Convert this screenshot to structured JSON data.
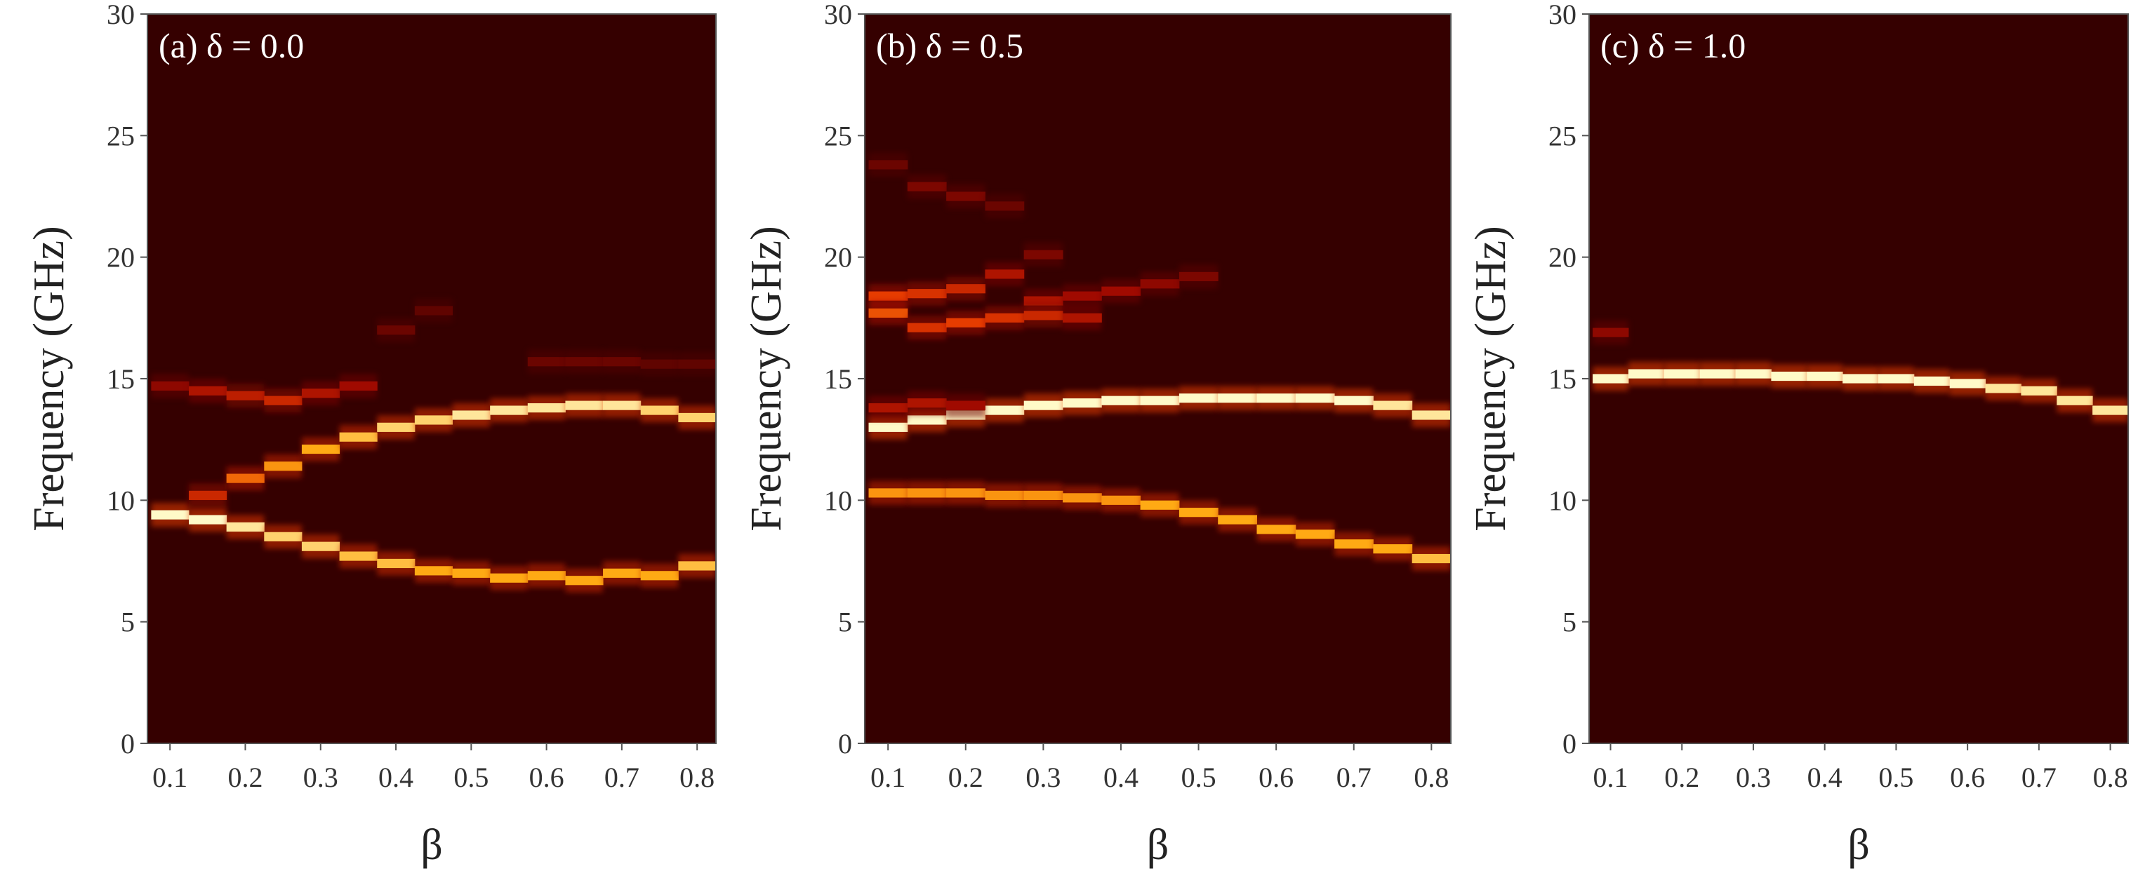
{
  "chart_data": [
    {
      "type": "heatmap",
      "title": "(a) δ = 0.0",
      "xlabel": "β",
      "ylabel": "Frequency (GHz)",
      "xticks": [
        "0.1",
        "0.2",
        "0.3",
        "0.4",
        "0.5",
        "0.6",
        "0.7",
        "0.8"
      ],
      "yticks": [
        "0",
        "5",
        "10",
        "15",
        "20",
        "25",
        "30"
      ],
      "xlim": [
        0.07,
        0.825
      ],
      "ylim": [
        0,
        30
      ],
      "grid": false,
      "background_color": "#350000",
      "bands": [
        {
          "x": [
            0.1,
            0.15,
            0.2,
            0.25,
            0.3,
            0.35,
            0.4,
            0.45,
            0.5,
            0.55,
            0.6,
            0.65,
            0.7,
            0.75,
            0.8
          ],
          "y": [
            9.4,
            9.2,
            8.9,
            8.5,
            8.1,
            7.7,
            7.4,
            7.1,
            7.0,
            6.8,
            6.9,
            6.7,
            7.0,
            6.9,
            7.3
          ],
          "intensity": [
            1.0,
            1.0,
            0.95,
            0.9,
            0.9,
            0.85,
            0.85,
            0.8,
            0.8,
            0.8,
            0.8,
            0.8,
            0.8,
            0.8,
            0.85
          ]
        },
        {
          "x": [
            0.15,
            0.2,
            0.25,
            0.3,
            0.35,
            0.4,
            0.45,
            0.5,
            0.55,
            0.6,
            0.65,
            0.7,
            0.75,
            0.8
          ],
          "y": [
            10.2,
            10.9,
            11.4,
            12.1,
            12.6,
            13.0,
            13.3,
            13.5,
            13.7,
            13.8,
            13.9,
            13.9,
            13.7,
            13.4
          ],
          "intensity": [
            0.45,
            0.65,
            0.75,
            0.8,
            0.85,
            0.9,
            0.9,
            0.95,
            0.95,
            0.95,
            0.95,
            0.95,
            0.9,
            0.9
          ]
        },
        {
          "x": [
            0.1,
            0.15,
            0.2,
            0.25,
            0.3,
            0.35,
            0.4
          ],
          "y": [
            14.7,
            14.5,
            14.3,
            14.1,
            14.4,
            14.7,
            17.0
          ],
          "intensity": [
            0.25,
            0.35,
            0.4,
            0.45,
            0.35,
            0.3,
            0.15
          ]
        },
        {
          "x": [
            0.45,
            0.6,
            0.65,
            0.7,
            0.75,
            0.8
          ],
          "y": [
            17.8,
            15.7,
            15.7,
            15.7,
            15.6,
            15.6
          ],
          "intensity": [
            0.12,
            0.15,
            0.15,
            0.15,
            0.12,
            0.12
          ]
        }
      ]
    },
    {
      "type": "heatmap",
      "title": "(b) δ = 0.5",
      "xlabel": "β",
      "ylabel": "Frequency (GHz)",
      "xticks": [
        "0.1",
        "0.2",
        "0.3",
        "0.4",
        "0.5",
        "0.6",
        "0.7",
        "0.8"
      ],
      "yticks": [
        "0",
        "5",
        "10",
        "15",
        "20",
        "25",
        "30"
      ],
      "xlim": [
        0.07,
        0.825
      ],
      "ylim": [
        0,
        30
      ],
      "grid": false,
      "background_color": "#350000",
      "bands": [
        {
          "x": [
            0.1,
            0.15,
            0.2,
            0.25,
            0.3,
            0.35,
            0.4,
            0.45,
            0.5,
            0.55,
            0.6,
            0.65,
            0.7,
            0.75,
            0.8
          ],
          "y": [
            13.0,
            13.3,
            13.5,
            13.7,
            13.9,
            14.0,
            14.1,
            14.1,
            14.2,
            14.2,
            14.2,
            14.2,
            14.1,
            13.9,
            13.5
          ],
          "intensity": [
            1.0,
            1.0,
            1.0,
            1.0,
            1.0,
            1.0,
            1.0,
            1.0,
            1.0,
            1.0,
            1.0,
            1.0,
            1.0,
            0.95,
            0.95
          ]
        },
        {
          "x": [
            0.1,
            0.15,
            0.2,
            0.25,
            0.3,
            0.35,
            0.4,
            0.45,
            0.5,
            0.55,
            0.6,
            0.65,
            0.7,
            0.75,
            0.8
          ],
          "y": [
            10.3,
            10.3,
            10.3,
            10.2,
            10.2,
            10.1,
            10.0,
            9.8,
            9.5,
            9.2,
            8.8,
            8.6,
            8.2,
            8.0,
            7.6
          ],
          "intensity": [
            0.75,
            0.75,
            0.75,
            0.75,
            0.75,
            0.75,
            0.75,
            0.8,
            0.8,
            0.8,
            0.8,
            0.8,
            0.8,
            0.8,
            0.85
          ]
        },
        {
          "x": [
            0.1,
            0.15,
            0.2,
            0.25,
            0.3,
            0.35,
            0.4,
            0.45,
            0.5
          ],
          "y": [
            18.4,
            18.5,
            18.7,
            19.3,
            18.2,
            18.4,
            18.6,
            18.9,
            19.2
          ],
          "intensity": [
            0.55,
            0.5,
            0.45,
            0.35,
            0.35,
            0.3,
            0.3,
            0.25,
            0.2
          ]
        },
        {
          "x": [
            0.1,
            0.15,
            0.2,
            0.25,
            0.3,
            0.35
          ],
          "y": [
            17.7,
            17.1,
            17.3,
            17.5,
            17.6,
            17.5
          ],
          "intensity": [
            0.6,
            0.5,
            0.55,
            0.5,
            0.45,
            0.35
          ]
        },
        {
          "x": [
            0.1,
            0.15,
            0.2,
            0.25,
            0.3
          ],
          "y": [
            23.8,
            22.9,
            22.5,
            22.1,
            20.1
          ],
          "intensity": [
            0.15,
            0.2,
            0.2,
            0.15,
            0.2
          ]
        },
        {
          "x": [
            0.1,
            0.15,
            0.2
          ],
          "y": [
            13.8,
            14.0,
            13.9
          ],
          "intensity": [
            0.35,
            0.35,
            0.3
          ]
        }
      ]
    },
    {
      "type": "heatmap",
      "title": "(c) δ = 1.0",
      "xlabel": "β",
      "ylabel": "Frequency (GHz)",
      "xticks": [
        "0.1",
        "0.2",
        "0.3",
        "0.4",
        "0.5",
        "0.6",
        "0.7",
        "0.8"
      ],
      "yticks": [
        "0",
        "5",
        "10",
        "15",
        "20",
        "25",
        "30"
      ],
      "xlim": [
        0.07,
        0.825
      ],
      "ylim": [
        0,
        30
      ],
      "grid": false,
      "background_color": "#350000",
      "bands": [
        {
          "x": [
            0.1,
            0.15,
            0.2,
            0.25,
            0.3,
            0.35,
            0.4,
            0.45,
            0.5,
            0.55,
            0.6,
            0.65,
            0.7,
            0.75,
            0.8
          ],
          "y": [
            15.0,
            15.2,
            15.2,
            15.2,
            15.2,
            15.1,
            15.1,
            15.0,
            15.0,
            14.9,
            14.8,
            14.6,
            14.5,
            14.1,
            13.7
          ],
          "intensity": [
            1.0,
            1.0,
            1.0,
            1.0,
            1.0,
            1.0,
            1.0,
            1.0,
            1.0,
            1.0,
            1.0,
            0.95,
            0.95,
            0.95,
            0.95
          ]
        },
        {
          "x": [
            0.1
          ],
          "y": [
            16.9
          ],
          "intensity": [
            0.25
          ]
        }
      ]
    }
  ]
}
